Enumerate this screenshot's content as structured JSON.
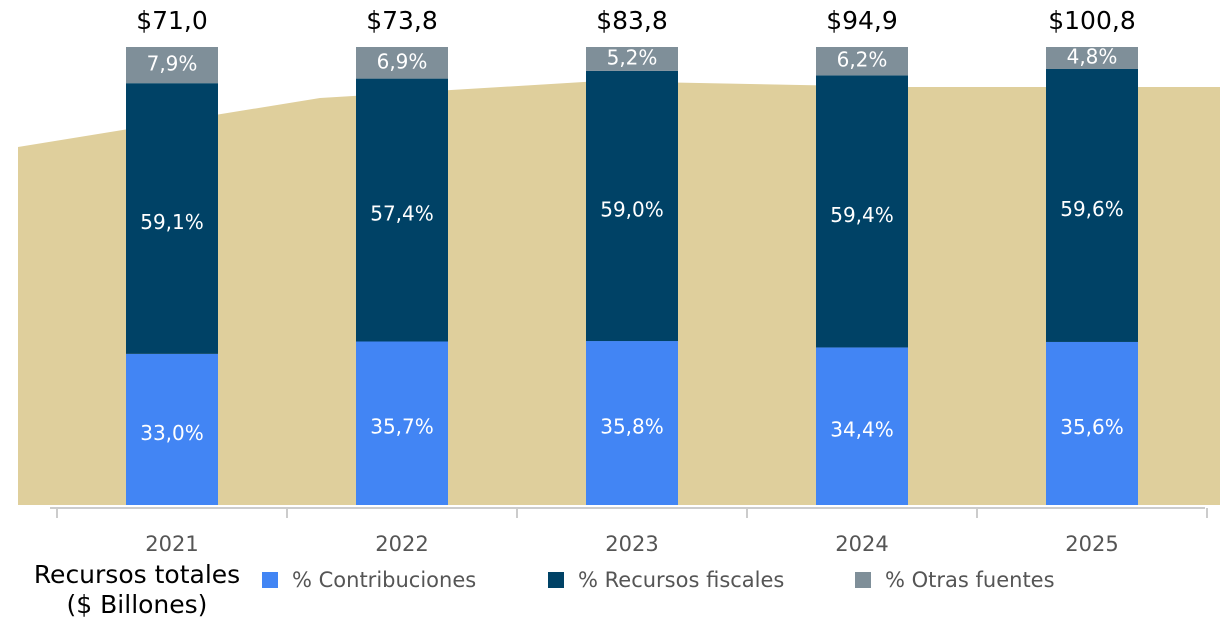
{
  "chart_data": {
    "type": "bar",
    "stacked": true,
    "categories": [
      "2021",
      "2022",
      "2023",
      "2024",
      "2025"
    ],
    "ylim": [
      0,
      100
    ],
    "series": [
      {
        "name": "% Contribuciones",
        "color": "#4285f4",
        "values": [
          33.0,
          35.7,
          35.8,
          34.4,
          35.6
        ],
        "value_labels": [
          "33,0%",
          "35,7%",
          "35,8%",
          "34,4%",
          "35,6%"
        ]
      },
      {
        "name": "% Recursos fiscales",
        "color": "#004266",
        "values": [
          59.1,
          57.4,
          59.0,
          59.4,
          59.6
        ],
        "value_labels": [
          "59,1%",
          "57,4%",
          "59,0%",
          "59,4%",
          "59,6%"
        ]
      },
      {
        "name": "% Otras fuentes",
        "color": "#7f8f99",
        "values": [
          7.9,
          6.9,
          5.2,
          6.2,
          4.8
        ],
        "value_labels": [
          "7,9%",
          "6,9%",
          "5,2%",
          "6,2%",
          "4,8%"
        ]
      }
    ],
    "totals": {
      "label": [
        "Recursos totales",
        "($ Billones)"
      ],
      "values": [
        71.0,
        73.8,
        83.8,
        94.9,
        100.8
      ],
      "value_labels": [
        "$71,0",
        "$73,8",
        "$83,8",
        "$94,9",
        "$100,8"
      ]
    }
  }
}
